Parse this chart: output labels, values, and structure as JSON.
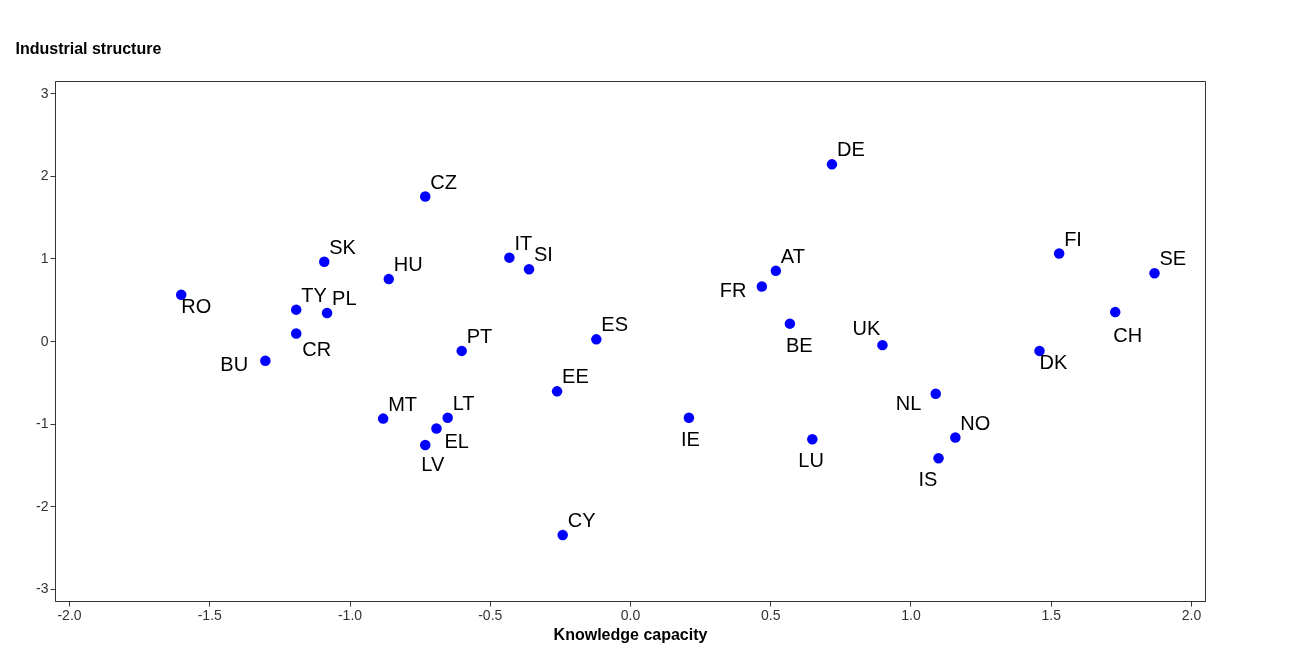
{
  "chart_data": {
    "type": "scatter",
    "xlabel": "Knowledge capacity",
    "ylabel": "Industrial structure",
    "xlim": [
      -2.05,
      2.05
    ],
    "ylim": [
      -3.15,
      3.15
    ],
    "xticks": [
      {
        "value": -2,
        "label": "-2.0"
      },
      {
        "value": -1.5,
        "label": "-1.5"
      },
      {
        "value": -1,
        "label": "-1.0"
      },
      {
        "value": -0.5,
        "label": "-0.5"
      },
      {
        "value": 0,
        "label": "0.0"
      },
      {
        "value": 0.5,
        "label": "0.5"
      },
      {
        "value": 1,
        "label": "1.0"
      },
      {
        "value": 1.5,
        "label": "1.5"
      },
      {
        "value": 2,
        "label": "2.0"
      }
    ],
    "yticks": [
      -3,
      -2,
      -1,
      0,
      1,
      2,
      3
    ],
    "grid": false,
    "marker": "circle",
    "series": [
      {
        "color": "#0000ff",
        "x": [
          -1.6,
          -1.19,
          -1.08,
          -1.19,
          -1.3,
          -1.09,
          -0.86,
          -0.73,
          -0.43,
          -0.36,
          -0.6,
          -0.12,
          -0.26,
          -0.88,
          -0.65,
          -0.69,
          -0.73,
          -0.24,
          0.21,
          0.65,
          1.09,
          1.16,
          1.1,
          0.72,
          0.52,
          0.47,
          0.57,
          0.9,
          1.53,
          1.87,
          1.73,
          1.46
        ],
        "values": [
          0.56,
          0.38,
          0.34,
          0.09,
          -0.24,
          0.96,
          0.75,
          1.75,
          1.01,
          0.87,
          -0.12,
          0.02,
          -0.61,
          -0.94,
          -0.93,
          -1.06,
          -1.26,
          -2.35,
          -0.93,
          -1.19,
          -0.64,
          -1.17,
          -1.42,
          2.14,
          0.85,
          0.66,
          0.21,
          -0.05,
          1.06,
          0.82,
          0.35,
          -0.12
        ]
      }
    ],
    "annotations": [
      {
        "text": "RO",
        "x": -1.6,
        "y": 0.56
      },
      {
        "text": "TY",
        "x": -1.19,
        "y": 0.38
      },
      {
        "text": "PL",
        "x": -1.08,
        "y": 0.34
      },
      {
        "text": "CR",
        "x": -1.19,
        "y": 0.09
      },
      {
        "text": "BU",
        "x": -1.3,
        "y": -0.24
      },
      {
        "text": "SK",
        "x": -1.09,
        "y": 0.96
      },
      {
        "text": "HU",
        "x": -0.86,
        "y": 0.75
      },
      {
        "text": "CZ",
        "x": -0.73,
        "y": 1.75
      },
      {
        "text": "IT",
        "x": -0.43,
        "y": 1.01
      },
      {
        "text": "SI",
        "x": -0.36,
        "y": 0.87
      },
      {
        "text": "PT",
        "x": -0.6,
        "y": -0.12
      },
      {
        "text": "ES",
        "x": -0.12,
        "y": 0.02
      },
      {
        "text": "EE",
        "x": -0.26,
        "y": -0.61
      },
      {
        "text": "MT",
        "x": -0.88,
        "y": -0.94
      },
      {
        "text": "LT",
        "x": -0.65,
        "y": -0.93
      },
      {
        "text": "EL",
        "x": -0.69,
        "y": -1.06
      },
      {
        "text": "LV",
        "x": -0.73,
        "y": -1.26
      },
      {
        "text": "CY",
        "x": -0.24,
        "y": -2.35
      },
      {
        "text": "IE",
        "x": 0.21,
        "y": -0.93
      },
      {
        "text": "LU",
        "x": 0.65,
        "y": -1.19
      },
      {
        "text": "NL",
        "x": 1.09,
        "y": -0.64
      },
      {
        "text": "NO",
        "x": 1.16,
        "y": -1.17
      },
      {
        "text": "IS",
        "x": 1.1,
        "y": -1.42
      },
      {
        "text": "DE",
        "x": 0.72,
        "y": 2.14
      },
      {
        "text": "AT",
        "x": 0.52,
        "y": 0.85
      },
      {
        "text": "FR",
        "x": 0.47,
        "y": 0.66
      },
      {
        "text": "BE",
        "x": 0.57,
        "y": 0.21
      },
      {
        "text": "UK",
        "x": 0.9,
        "y": -0.05
      },
      {
        "text": "FI",
        "x": 1.53,
        "y": 1.06
      },
      {
        "text": "SE",
        "x": 1.87,
        "y": 0.82
      },
      {
        "text": "CH",
        "x": 1.73,
        "y": 0.35
      },
      {
        "text": "DK",
        "x": 1.46,
        "y": -0.12
      }
    ]
  }
}
